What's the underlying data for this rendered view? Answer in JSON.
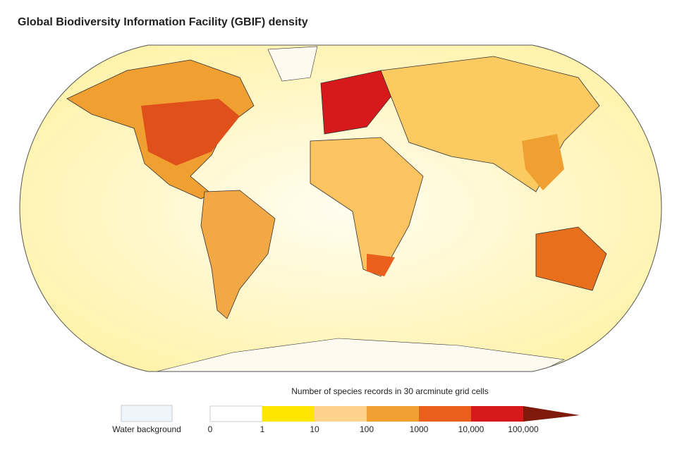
{
  "title": "Global Biodiversity Information Facility (GBIF) density",
  "legend": {
    "title": "Number of species records in 30 arcminute grid cells",
    "water_label": "Water background",
    "water_color": "#eef5fb",
    "ticks": [
      "0",
      "1",
      "10",
      "100",
      "1000",
      "10,000",
      "100,000"
    ],
    "colors": [
      "#ffffff",
      "#ffe600",
      "#fdd28a",
      "#f0a030",
      "#e8601c",
      "#d7191c",
      "#7f1a0a"
    ]
  }
}
